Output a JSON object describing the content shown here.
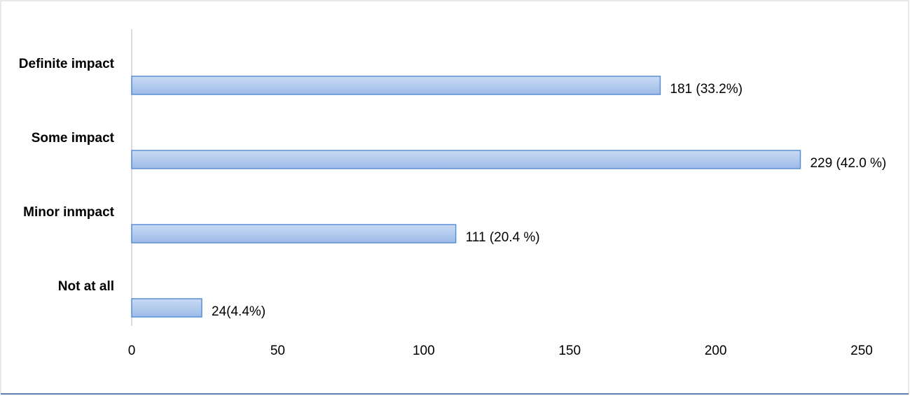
{
  "chart_data": {
    "type": "bar",
    "orientation": "horizontal",
    "categories": [
      "Definite impact",
      "Some impact",
      "Minor inmpact",
      "Not at all"
    ],
    "values": [
      181,
      229,
      111,
      24
    ],
    "value_labels": [
      "181 (33.2%)",
      "229 (42.0 %)",
      "111 (20.4 %)",
      "24(4.4%)"
    ],
    "color": "#a9c5ec",
    "xlim": [
      0,
      250
    ],
    "xticks": [
      0,
      50,
      100,
      150,
      200,
      250
    ],
    "grid": false
  }
}
